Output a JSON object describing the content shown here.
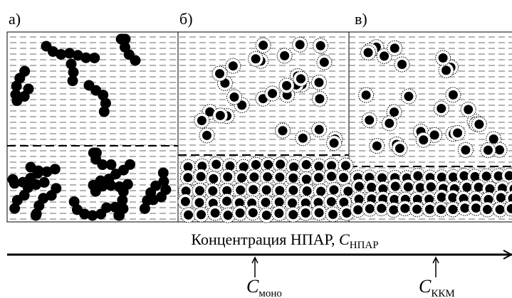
{
  "panels": [
    {
      "label": "а)"
    },
    {
      "label": "б)"
    },
    {
      "label": "в)"
    }
  ],
  "axis": {
    "label": "Концентрация НПАР, ",
    "symbol": "C",
    "subscript": "НПАР"
  },
  "markers": [
    {
      "symbol": "C",
      "subscript": "моно"
    },
    {
      "symbol": "C",
      "subscript": "ККМ"
    }
  ]
}
